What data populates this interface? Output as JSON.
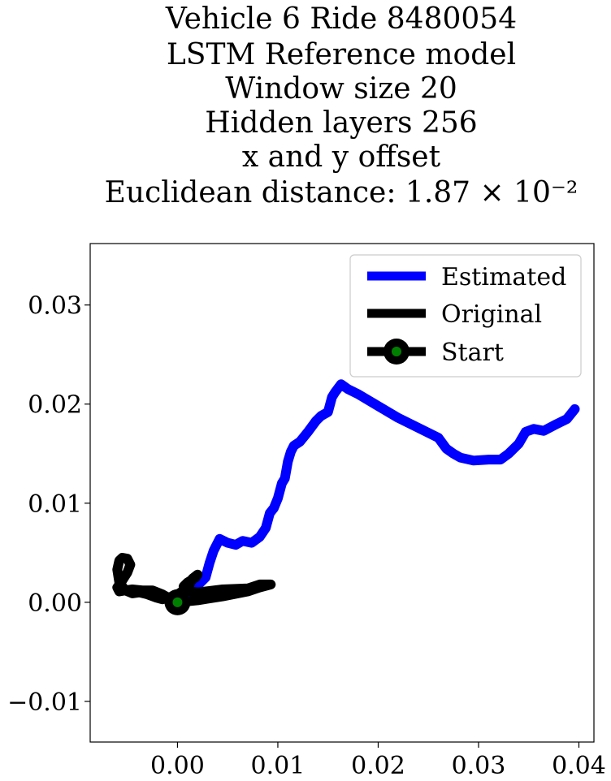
{
  "chart_data": {
    "type": "line",
    "title_lines": [
      "Vehicle 6 Ride 8480054",
      "LSTM Reference model",
      "Window size 20",
      "Hidden layers 256",
      "x and y offset",
      "Euclidean distance: 1.87 × 10⁻²"
    ],
    "xlabel": "",
    "ylabel": "",
    "xlim": [
      -0.0087,
      0.0415
    ],
    "ylim": [
      -0.0141,
      0.0362
    ],
    "xticks": [
      0.0,
      0.01,
      0.02,
      0.03,
      0.04
    ],
    "xtick_labels": [
      "0.00",
      "0.01",
      "0.02",
      "0.03",
      "0.04"
    ],
    "yticks": [
      -0.01,
      0.0,
      0.01,
      0.02,
      0.03
    ],
    "ytick_labels": [
      "−0.01",
      "0.00",
      "0.01",
      "0.02",
      "0.03"
    ],
    "grid": false,
    "legend_position": "top-right",
    "series": [
      {
        "name": "Estimated",
        "color": "#0000ff",
        "x": [
          0.0,
          0.0015,
          0.0028,
          0.0032,
          0.0036,
          0.0042,
          0.005,
          0.0058,
          0.0065,
          0.0074,
          0.0082,
          0.0088,
          0.0092,
          0.0096,
          0.01,
          0.0104,
          0.0107,
          0.011,
          0.0113,
          0.0116,
          0.0122,
          0.013,
          0.0138,
          0.0143,
          0.015,
          0.0154,
          0.0157,
          0.0163,
          0.017,
          0.018,
          0.02,
          0.022,
          0.024,
          0.026,
          0.0268,
          0.0275,
          0.0282,
          0.0295,
          0.031,
          0.0322,
          0.033,
          0.034,
          0.0347,
          0.0355,
          0.0365,
          0.0378,
          0.0388,
          0.0396
        ],
        "y": [
          0.0,
          0.0012,
          0.0025,
          0.004,
          0.0052,
          0.0064,
          0.006,
          0.0058,
          0.0062,
          0.006,
          0.0066,
          0.0075,
          0.009,
          0.0095,
          0.0105,
          0.012,
          0.0125,
          0.0142,
          0.0152,
          0.0158,
          0.0162,
          0.0172,
          0.0183,
          0.0188,
          0.0192,
          0.0207,
          0.0212,
          0.022,
          0.0215,
          0.021,
          0.0198,
          0.0186,
          0.0176,
          0.0166,
          0.0155,
          0.015,
          0.0146,
          0.0143,
          0.0144,
          0.0144,
          0.015,
          0.016,
          0.0172,
          0.0175,
          0.0173,
          0.018,
          0.0185,
          0.0195
        ]
      },
      {
        "name": "Original",
        "color": "#000000",
        "x": [
          0.0,
          0.002,
          0.0045,
          0.007,
          0.0082,
          0.0093,
          0.0082,
          0.007,
          0.0045,
          0.002,
          0.0008,
          0.0006,
          0.001,
          0.0018,
          0.002,
          0.0015,
          0.0012,
          0.0006,
          0.0,
          -0.0008,
          -0.0015,
          -0.0022,
          -0.003,
          -0.0038,
          -0.0045,
          -0.0052,
          -0.0058,
          -0.006,
          -0.0058,
          -0.0055,
          -0.005,
          -0.0047,
          -0.005,
          -0.0055,
          -0.006,
          -0.0058,
          -0.0052,
          -0.0045,
          -0.0035,
          -0.0025,
          -0.0015,
          -0.0008,
          0.0
        ],
        "y": [
          0.0,
          0.0002,
          0.0006,
          0.0011,
          0.0015,
          0.0018,
          0.0018,
          0.0014,
          0.0013,
          0.001,
          0.0012,
          0.0016,
          0.002,
          0.0025,
          0.0028,
          0.0024,
          0.0018,
          0.0012,
          0.0008,
          0.0005,
          0.0003,
          0.0005,
          0.0008,
          0.001,
          0.0009,
          0.0012,
          0.002,
          0.0033,
          0.0042,
          0.0045,
          0.0044,
          0.0038,
          0.003,
          0.0022,
          0.0015,
          0.0011,
          0.0012,
          0.0013,
          0.0012,
          0.0012,
          0.0008,
          0.0004,
          0.0
        ]
      }
    ],
    "markers": [
      {
        "name": "Start",
        "x": 0.0,
        "y": 0.0,
        "outer_color": "#000000",
        "inner_color": "#008000"
      }
    ]
  }
}
